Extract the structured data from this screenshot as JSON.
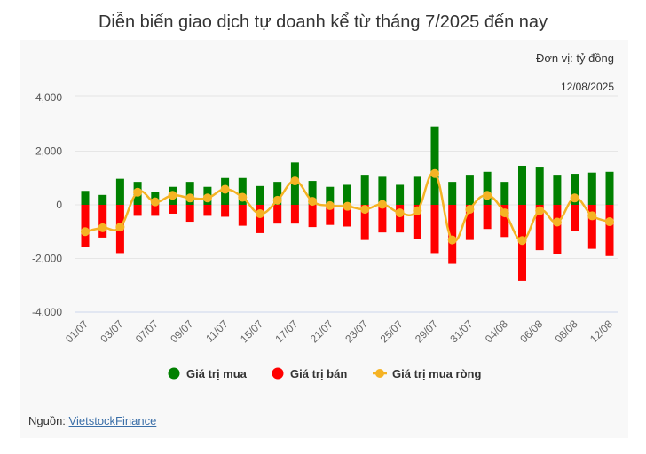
{
  "chart_data": {
    "type": "bar",
    "title": "Diễn biến giao dịch tự doanh kể từ tháng 7/2025 đến nay",
    "unit_label": "Đơn vị: tỷ đồng",
    "date_label": "12/08/2025",
    "categories": [
      "01/07",
      "",
      "03/07",
      "",
      "07/07",
      "",
      "09/07",
      "",
      "11/07",
      "",
      "15/07",
      "",
      "17/07",
      "",
      "21/07",
      "",
      "23/07",
      "",
      "25/07",
      "",
      "29/07",
      "",
      "31/07",
      "",
      "04/08",
      "",
      "06/08",
      "",
      "08/08",
      "",
      "12/08"
    ],
    "ylim": [
      -4000,
      4000
    ],
    "yticks": [
      4000,
      2000,
      0,
      -2000,
      -4000
    ],
    "ytick_labels": [
      "4,000",
      "2,000",
      "0",
      "-2,000",
      "-4,000"
    ],
    "grid": true,
    "legend_position": "bottom",
    "series": [
      {
        "name": "Giá trị mua",
        "type": "bar",
        "color": "#008000",
        "values": [
          520,
          370,
          970,
          855,
          480,
          670,
          855,
          670,
          1000,
          1000,
          700,
          855,
          1575,
          890,
          670,
          745,
          1120,
          1045,
          745,
          1045,
          2920,
          855,
          1120,
          1230,
          855,
          1455,
          1420,
          1120,
          1155,
          1200,
          1230
        ]
      },
      {
        "name": "Giá trị bán",
        "type": "bar",
        "color": "#ff0000",
        "values": [
          -1580,
          -1220,
          -1800,
          -410,
          -410,
          -330,
          -630,
          -410,
          -445,
          -780,
          -1055,
          -700,
          -700,
          -830,
          -750,
          -810,
          -1310,
          -1030,
          -1030,
          -1265,
          -1800,
          -2200,
          -1310,
          -900,
          -1200,
          -2840,
          -1690,
          -1830,
          -975,
          -1640,
          -1910
        ]
      },
      {
        "name": "Giá trị mua ròng",
        "type": "line",
        "color": "#f5b324",
        "values": [
          -1000,
          -855,
          -830,
          470,
          110,
          355,
          255,
          255,
          580,
          280,
          -330,
          170,
          890,
          130,
          -30,
          -55,
          -170,
          15,
          -300,
          -220,
          1165,
          -1310,
          -170,
          355,
          -300,
          -1330,
          -220,
          -645,
          255,
          -410,
          -630
        ]
      }
    ]
  },
  "source": {
    "label": "Nguồn:",
    "link_text": "VietstockFinance"
  }
}
